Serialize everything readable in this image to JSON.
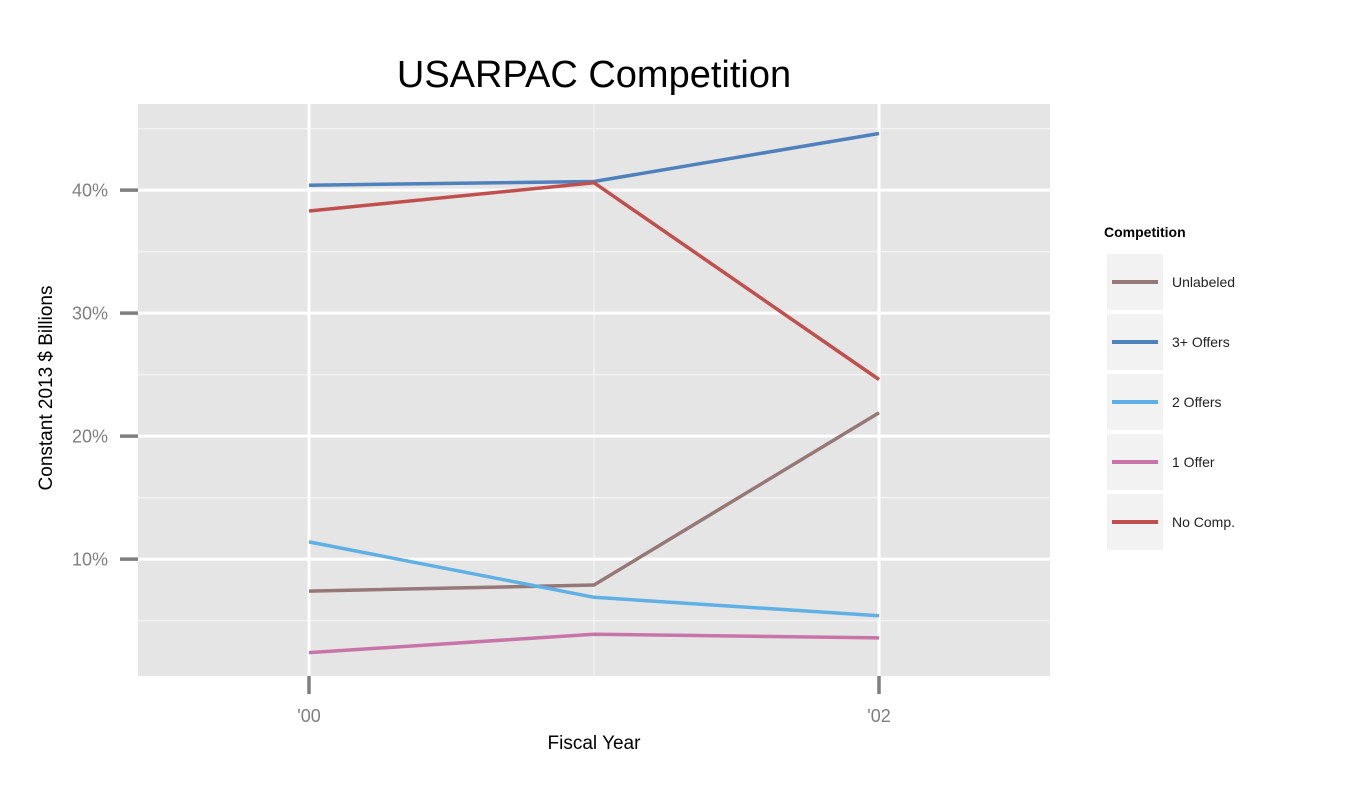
{
  "chart_data": {
    "type": "line",
    "title": "USARPAC Competition",
    "xlabel": "Fiscal Year",
    "ylabel": "Constant 2013 $ Billions",
    "x": [
      2000,
      2001,
      2002
    ],
    "x_ticks": [
      {
        "value": 2000,
        "label": "'00"
      },
      {
        "value": 2002,
        "label": "'02"
      }
    ],
    "xlim": [
      1999.4,
      2002.6
    ],
    "y_ticks": [
      {
        "value": 10,
        "label": "10%"
      },
      {
        "value": 20,
        "label": "20%"
      },
      {
        "value": 30,
        "label": "30%"
      },
      {
        "value": 40,
        "label": "40%"
      }
    ],
    "ylim": [
      0.5,
      47.0
    ],
    "grid": true,
    "legend_title": "Competition",
    "legend_position": "right",
    "series": [
      {
        "name": "Unlabeled",
        "color": "#967878",
        "values": [
          7.4,
          7.9,
          21.9
        ]
      },
      {
        "name": "3+ Offers",
        "color": "#4f81bd",
        "values": [
          40.4,
          40.7,
          44.6
        ]
      },
      {
        "name": "2 Offers",
        "color": "#5eb0e5",
        "values": [
          11.4,
          6.9,
          5.4
        ]
      },
      {
        "name": "1 Offer",
        "color": "#c974a9",
        "values": [
          2.4,
          3.9,
          3.6
        ]
      },
      {
        "name": "No Comp.",
        "color": "#c0504d",
        "values": [
          38.3,
          40.6,
          24.6
        ]
      }
    ]
  }
}
